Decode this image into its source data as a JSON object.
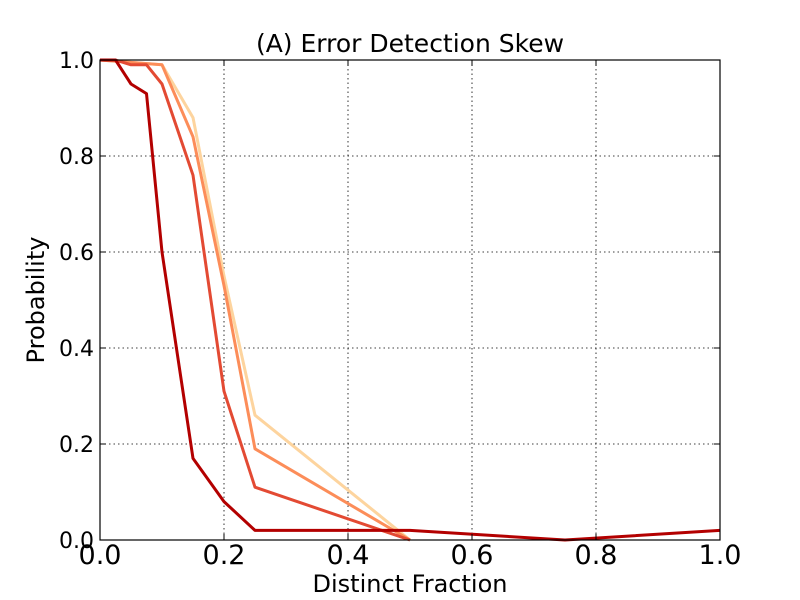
{
  "chart_data": {
    "type": "line",
    "title": "(A) Error Detection Skew",
    "xlabel": "Distinct Fraction",
    "ylabel": "Probability",
    "xlim": [
      0.0,
      1.0
    ],
    "ylim": [
      0.0,
      1.0
    ],
    "xticks": [
      "0.0",
      "0.2",
      "0.4",
      "0.6",
      "0.8",
      "1.0"
    ],
    "yticks": [
      "0.0",
      "0.2",
      "0.4",
      "0.6",
      "0.8",
      "1.0"
    ],
    "grid": true,
    "series": [
      {
        "color": "#fdd49e",
        "x": [
          0.0,
          0.1,
          0.15,
          0.2,
          0.25,
          0.5
        ],
        "y": [
          1.0,
          0.99,
          0.88,
          0.55,
          0.26,
          0.0
        ]
      },
      {
        "color": "#fc8d59",
        "x": [
          0.0,
          0.1,
          0.15,
          0.2,
          0.25,
          0.5
        ],
        "y": [
          1.0,
          0.99,
          0.84,
          0.53,
          0.19,
          0.0
        ]
      },
      {
        "color": "#e34a33",
        "x": [
          0.0,
          0.025,
          0.05,
          0.075,
          0.1,
          0.15,
          0.2,
          0.25,
          0.5
        ],
        "y": [
          1.0,
          1.0,
          0.99,
          0.99,
          0.95,
          0.76,
          0.31,
          0.11,
          0.0
        ]
      },
      {
        "color": "#b30000",
        "x": [
          0.0,
          0.025,
          0.05,
          0.075,
          0.1,
          0.15,
          0.2,
          0.25,
          0.5,
          0.75,
          1.0
        ],
        "y": [
          1.0,
          1.0,
          0.95,
          0.93,
          0.6,
          0.17,
          0.08,
          0.02,
          0.02,
          0.0,
          0.02
        ]
      }
    ]
  }
}
